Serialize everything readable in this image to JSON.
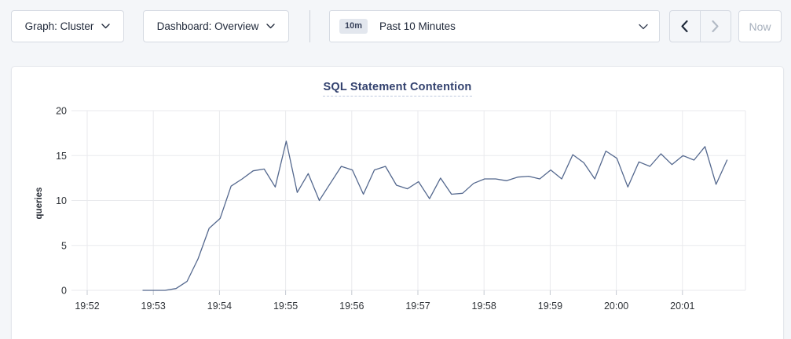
{
  "toolbar": {
    "graph_dropdown_label": "Graph: Cluster",
    "dashboard_dropdown_label": "Dashboard: Overview",
    "time_window_badge": "10m",
    "time_window_label": "Past 10 Minutes",
    "now_button_label": "Now"
  },
  "colors": {
    "line": "#54688e",
    "grid": "#e9eaed",
    "tick_mark": "#c4c9d1",
    "tick_text": "#2f3338",
    "title": "#32416e"
  },
  "chart_data": {
    "type": "line",
    "title": "SQL Statement Contention",
    "xlabel": "",
    "ylabel": "queries",
    "ylim": [
      0,
      20
    ],
    "y_ticks": [
      0,
      5,
      10,
      15,
      20
    ],
    "x_tick_labels": [
      "19:52",
      "19:53",
      "19:54",
      "19:55",
      "19:56",
      "19:57",
      "19:58",
      "19:59",
      "20:00",
      "20:01"
    ],
    "grid": true,
    "legend_position": "none",
    "series": [
      {
        "name": "SQL Statement Contention",
        "start_time": "19:52:50",
        "interval_seconds": 10,
        "values": [
          0,
          0,
          0,
          0.2,
          1.0,
          3.5,
          6.9,
          8.0,
          11.6,
          12.4,
          13.3,
          13.5,
          11.5,
          16.6,
          10.9,
          13.0,
          10.0,
          11.9,
          13.8,
          13.4,
          10.7,
          13.4,
          13.8,
          11.7,
          11.3,
          12.1,
          10.2,
          12.5,
          10.7,
          10.8,
          11.9,
          12.4,
          12.4,
          12.2,
          12.6,
          12.7,
          12.4,
          13.4,
          12.4,
          15.1,
          14.2,
          12.4,
          15.5,
          14.7,
          11.5,
          14.3,
          13.8,
          15.2,
          14.0,
          15.0,
          14.5,
          16.0,
          11.8,
          14.5
        ]
      }
    ]
  }
}
